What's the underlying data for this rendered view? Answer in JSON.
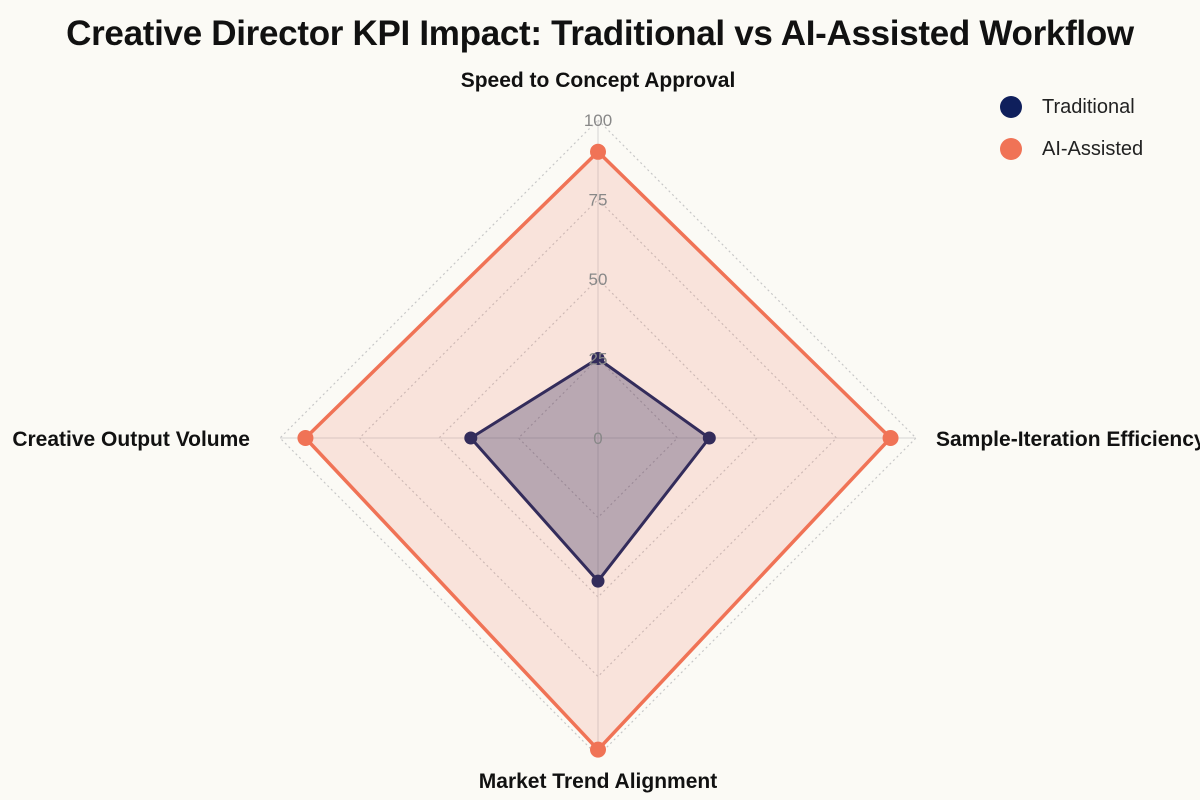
{
  "chart_data": {
    "type": "radar",
    "title": "Creative Director KPI Impact: Traditional vs AI-Assisted Workflow",
    "axes": [
      "Speed to Concept Approval",
      "Sample-Iteration Efficiency",
      "Market Trend Alignment",
      "Creative Output Volume"
    ],
    "r_ticks": [
      0,
      25,
      50,
      75,
      100
    ],
    "r_range": [
      0,
      100
    ],
    "series": [
      {
        "name": "Traditional",
        "values": [
          25,
          35,
          45,
          40
        ],
        "color": "#0f1f5c"
      },
      {
        "name": "AI-Assisted",
        "values": [
          90,
          92,
          98,
          92
        ],
        "color": "#f07356"
      }
    ],
    "legend_position": "top-right",
    "grid": true
  }
}
